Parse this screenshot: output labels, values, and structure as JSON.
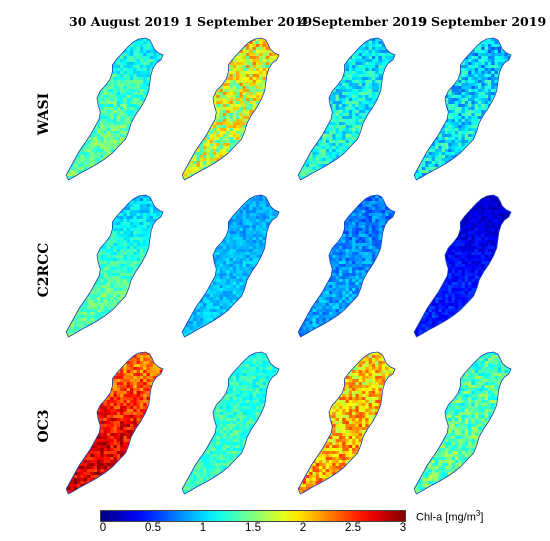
{
  "columns": [
    "30 August 2019",
    "1 September 2019",
    "4 September 2019",
    "9 September 2019"
  ],
  "rows": [
    "WASI",
    "C2RCC",
    "OC3"
  ],
  "colorbar": {
    "label_prefix": "Chl-a [mg/m",
    "label_sup": "3",
    "label_suffix": "]",
    "ticks": [
      "0",
      "0.5",
      "1",
      "1.5",
      "2",
      "2.5",
      "3"
    ],
    "min": 0,
    "max": 3,
    "colormap": "jet"
  },
  "maps": [
    {
      "row": "WASI",
      "column": "30 August 2019",
      "mean": 1.4,
      "upper_mean": 1.1,
      "speckle": 0.25
    },
    {
      "row": "WASI",
      "column": "1 September 2019",
      "mean": 1.7,
      "upper_mean": 1.9,
      "speckle": 0.45
    },
    {
      "row": "WASI",
      "column": "4 September 2019",
      "mean": 1.2,
      "upper_mean": 1.0,
      "speckle": 0.3
    },
    {
      "row": "WASI",
      "column": "9 September 2019",
      "mean": 1.1,
      "upper_mean": 0.95,
      "speckle": 0.35
    },
    {
      "row": "C2RCC",
      "column": "30 August 2019",
      "mean": 1.4,
      "upper_mean": 0.95,
      "speckle": 0.2
    },
    {
      "row": "C2RCC",
      "column": "1 September 2019",
      "mean": 0.95,
      "upper_mean": 0.85,
      "speckle": 0.15
    },
    {
      "row": "C2RCC",
      "column": "4 September 2019",
      "mean": 0.85,
      "upper_mean": 0.7,
      "speckle": 0.2
    },
    {
      "row": "C2RCC",
      "column": "9 September 2019",
      "mean": 0.45,
      "upper_mean": 0.2,
      "speckle": 0.15
    },
    {
      "row": "OC3",
      "column": "30 August 2019",
      "mean": 2.7,
      "upper_mean": 2.2,
      "speckle": 0.3
    },
    {
      "row": "OC3",
      "column": "1 September 2019",
      "mean": 1.3,
      "upper_mean": 1.2,
      "speckle": 0.2
    },
    {
      "row": "OC3",
      "column": "4 September 2019",
      "mean": 2.1,
      "upper_mean": 1.9,
      "speckle": 0.4
    },
    {
      "row": "OC3",
      "column": "9 September 2019",
      "mean": 1.4,
      "upper_mean": 1.3,
      "speckle": 0.3
    }
  ]
}
